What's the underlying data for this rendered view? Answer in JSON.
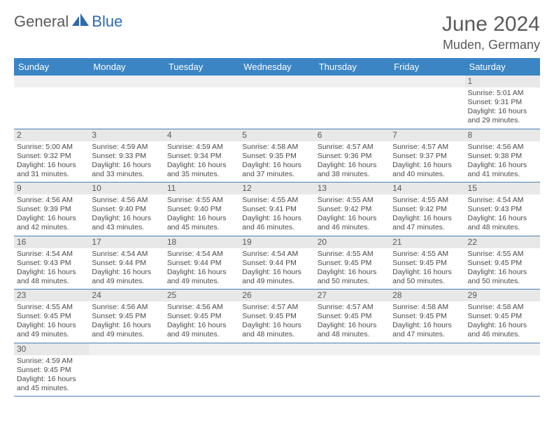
{
  "brand": {
    "part1": "General",
    "part2": "Blue"
  },
  "title": "June 2024",
  "location": "Muden, Germany",
  "day_headers": [
    "Sunday",
    "Monday",
    "Tuesday",
    "Wednesday",
    "Thursday",
    "Friday",
    "Saturday"
  ],
  "colors": {
    "header_bg": "#3b85c5",
    "header_text": "#ffffff",
    "border": "#4a7fb0",
    "daynum_bg": "#e8e8e8",
    "text": "#4a4a4a",
    "brand_gray": "#5a5a5a",
    "brand_blue": "#2d6bb0"
  },
  "weeks": [
    [
      {
        "n": "",
        "sr": "",
        "ss": "",
        "dl": ""
      },
      {
        "n": "",
        "sr": "",
        "ss": "",
        "dl": ""
      },
      {
        "n": "",
        "sr": "",
        "ss": "",
        "dl": ""
      },
      {
        "n": "",
        "sr": "",
        "ss": "",
        "dl": ""
      },
      {
        "n": "",
        "sr": "",
        "ss": "",
        "dl": ""
      },
      {
        "n": "",
        "sr": "",
        "ss": "",
        "dl": ""
      },
      {
        "n": "1",
        "sr": "Sunrise: 5:01 AM",
        "ss": "Sunset: 9:31 PM",
        "dl": "Daylight: 16 hours and 29 minutes."
      }
    ],
    [
      {
        "n": "2",
        "sr": "Sunrise: 5:00 AM",
        "ss": "Sunset: 9:32 PM",
        "dl": "Daylight: 16 hours and 31 minutes."
      },
      {
        "n": "3",
        "sr": "Sunrise: 4:59 AM",
        "ss": "Sunset: 9:33 PM",
        "dl": "Daylight: 16 hours and 33 minutes."
      },
      {
        "n": "4",
        "sr": "Sunrise: 4:59 AM",
        "ss": "Sunset: 9:34 PM",
        "dl": "Daylight: 16 hours and 35 minutes."
      },
      {
        "n": "5",
        "sr": "Sunrise: 4:58 AM",
        "ss": "Sunset: 9:35 PM",
        "dl": "Daylight: 16 hours and 37 minutes."
      },
      {
        "n": "6",
        "sr": "Sunrise: 4:57 AM",
        "ss": "Sunset: 9:36 PM",
        "dl": "Daylight: 16 hours and 38 minutes."
      },
      {
        "n": "7",
        "sr": "Sunrise: 4:57 AM",
        "ss": "Sunset: 9:37 PM",
        "dl": "Daylight: 16 hours and 40 minutes."
      },
      {
        "n": "8",
        "sr": "Sunrise: 4:56 AM",
        "ss": "Sunset: 9:38 PM",
        "dl": "Daylight: 16 hours and 41 minutes."
      }
    ],
    [
      {
        "n": "9",
        "sr": "Sunrise: 4:56 AM",
        "ss": "Sunset: 9:39 PM",
        "dl": "Daylight: 16 hours and 42 minutes."
      },
      {
        "n": "10",
        "sr": "Sunrise: 4:56 AM",
        "ss": "Sunset: 9:40 PM",
        "dl": "Daylight: 16 hours and 43 minutes."
      },
      {
        "n": "11",
        "sr": "Sunrise: 4:55 AM",
        "ss": "Sunset: 9:40 PM",
        "dl": "Daylight: 16 hours and 45 minutes."
      },
      {
        "n": "12",
        "sr": "Sunrise: 4:55 AM",
        "ss": "Sunset: 9:41 PM",
        "dl": "Daylight: 16 hours and 46 minutes."
      },
      {
        "n": "13",
        "sr": "Sunrise: 4:55 AM",
        "ss": "Sunset: 9:42 PM",
        "dl": "Daylight: 16 hours and 46 minutes."
      },
      {
        "n": "14",
        "sr": "Sunrise: 4:55 AM",
        "ss": "Sunset: 9:42 PM",
        "dl": "Daylight: 16 hours and 47 minutes."
      },
      {
        "n": "15",
        "sr": "Sunrise: 4:54 AM",
        "ss": "Sunset: 9:43 PM",
        "dl": "Daylight: 16 hours and 48 minutes."
      }
    ],
    [
      {
        "n": "16",
        "sr": "Sunrise: 4:54 AM",
        "ss": "Sunset: 9:43 PM",
        "dl": "Daylight: 16 hours and 48 minutes."
      },
      {
        "n": "17",
        "sr": "Sunrise: 4:54 AM",
        "ss": "Sunset: 9:44 PM",
        "dl": "Daylight: 16 hours and 49 minutes."
      },
      {
        "n": "18",
        "sr": "Sunrise: 4:54 AM",
        "ss": "Sunset: 9:44 PM",
        "dl": "Daylight: 16 hours and 49 minutes."
      },
      {
        "n": "19",
        "sr": "Sunrise: 4:54 AM",
        "ss": "Sunset: 9:44 PM",
        "dl": "Daylight: 16 hours and 49 minutes."
      },
      {
        "n": "20",
        "sr": "Sunrise: 4:55 AM",
        "ss": "Sunset: 9:45 PM",
        "dl": "Daylight: 16 hours and 50 minutes."
      },
      {
        "n": "21",
        "sr": "Sunrise: 4:55 AM",
        "ss": "Sunset: 9:45 PM",
        "dl": "Daylight: 16 hours and 50 minutes."
      },
      {
        "n": "22",
        "sr": "Sunrise: 4:55 AM",
        "ss": "Sunset: 9:45 PM",
        "dl": "Daylight: 16 hours and 50 minutes."
      }
    ],
    [
      {
        "n": "23",
        "sr": "Sunrise: 4:55 AM",
        "ss": "Sunset: 9:45 PM",
        "dl": "Daylight: 16 hours and 49 minutes."
      },
      {
        "n": "24",
        "sr": "Sunrise: 4:56 AM",
        "ss": "Sunset: 9:45 PM",
        "dl": "Daylight: 16 hours and 49 minutes."
      },
      {
        "n": "25",
        "sr": "Sunrise: 4:56 AM",
        "ss": "Sunset: 9:45 PM",
        "dl": "Daylight: 16 hours and 49 minutes."
      },
      {
        "n": "26",
        "sr": "Sunrise: 4:57 AM",
        "ss": "Sunset: 9:45 PM",
        "dl": "Daylight: 16 hours and 48 minutes."
      },
      {
        "n": "27",
        "sr": "Sunrise: 4:57 AM",
        "ss": "Sunset: 9:45 PM",
        "dl": "Daylight: 16 hours and 48 minutes."
      },
      {
        "n": "28",
        "sr": "Sunrise: 4:58 AM",
        "ss": "Sunset: 9:45 PM",
        "dl": "Daylight: 16 hours and 47 minutes."
      },
      {
        "n": "29",
        "sr": "Sunrise: 4:58 AM",
        "ss": "Sunset: 9:45 PM",
        "dl": "Daylight: 16 hours and 46 minutes."
      }
    ],
    [
      {
        "n": "30",
        "sr": "Sunrise: 4:59 AM",
        "ss": "Sunset: 9:45 PM",
        "dl": "Daylight: 16 hours and 45 minutes."
      },
      {
        "n": "",
        "sr": "",
        "ss": "",
        "dl": ""
      },
      {
        "n": "",
        "sr": "",
        "ss": "",
        "dl": ""
      },
      {
        "n": "",
        "sr": "",
        "ss": "",
        "dl": ""
      },
      {
        "n": "",
        "sr": "",
        "ss": "",
        "dl": ""
      },
      {
        "n": "",
        "sr": "",
        "ss": "",
        "dl": ""
      },
      {
        "n": "",
        "sr": "",
        "ss": "",
        "dl": ""
      }
    ]
  ]
}
